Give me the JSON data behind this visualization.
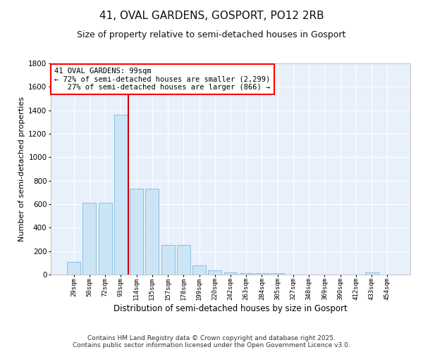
{
  "title": "41, OVAL GARDENS, GOSPORT, PO12 2RB",
  "subtitle": "Size of property relative to semi-detached houses in Gosport",
  "xlabel": "Distribution of semi-detached houses by size in Gosport",
  "ylabel": "Number of semi-detached properties",
  "footnote": "Contains HM Land Registry data © Crown copyright and database right 2025.\nContains public sector information licensed under the Open Government Licence v3.0.",
  "bins": [
    "29sqm",
    "50sqm",
    "72sqm",
    "93sqm",
    "114sqm",
    "135sqm",
    "157sqm",
    "178sqm",
    "199sqm",
    "220sqm",
    "242sqm",
    "263sqm",
    "284sqm",
    "305sqm",
    "327sqm",
    "348sqm",
    "369sqm",
    "390sqm",
    "412sqm",
    "433sqm",
    "454sqm"
  ],
  "bar_heights": [
    110,
    610,
    610,
    1360,
    730,
    730,
    250,
    250,
    80,
    35,
    20,
    10,
    10,
    10,
    0,
    0,
    0,
    0,
    0,
    20,
    0
  ],
  "bar_color": "#cce5f6",
  "bar_edge_color": "#7ab8e0",
  "vline_color": "#cc0000",
  "annotation_line1": "41 OVAL GARDENS: 99sqm",
  "annotation_line2": "← 72% of semi-detached houses are smaller (2,299)",
  "annotation_line3": "   27% of semi-detached houses are larger (866) →",
  "ylim": [
    0,
    1800
  ],
  "yticks": [
    0,
    200,
    400,
    600,
    800,
    1000,
    1200,
    1400,
    1600,
    1800
  ],
  "bg_color": "#e8f0fb",
  "grid_color": "#ffffff",
  "title_fontsize": 11,
  "subtitle_fontsize": 9,
  "ylabel_fontsize": 8,
  "xlabel_fontsize": 8.5,
  "footnote_fontsize": 6.5
}
